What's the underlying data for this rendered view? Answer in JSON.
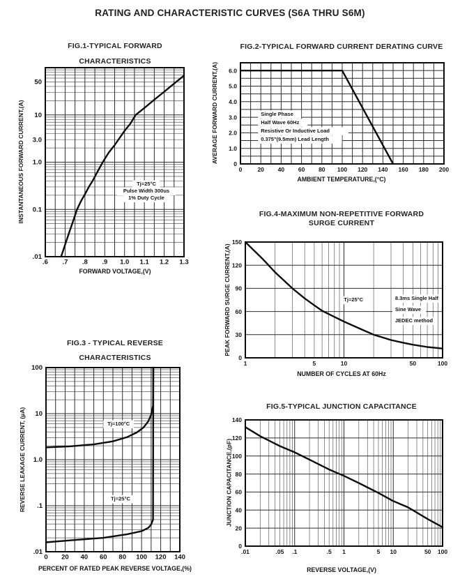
{
  "page": {
    "title": "RATING AND CHARACTERISTIC CURVES (S6A THRU S6M)"
  },
  "chart_data": [
    {
      "id": "fig1",
      "type": "line",
      "title": "FIG.1-TYPICAL FORWARD",
      "title2": "CHARACTERISTICS",
      "xlabel": "FORWARD VOLTAGE,(V)",
      "ylabel": "INSTANTANEOUS FORWARD CURRENT,(A)",
      "grid": true,
      "x": {
        "scale": "linear",
        "min": 0.6,
        "max": 1.3,
        "grid_step": 0.05,
        "ticks": [
          [
            0.6,
            ".6"
          ],
          [
            0.7,
            ".7"
          ],
          [
            0.8,
            ".8"
          ],
          [
            0.9,
            ".9"
          ],
          [
            1.0,
            "1.0"
          ],
          [
            1.1,
            "1.1"
          ],
          [
            1.2,
            "1.2"
          ],
          [
            1.3,
            "1.3"
          ]
        ]
      },
      "y": {
        "scale": "log",
        "min": 0.01,
        "max": 100,
        "ticks": [
          [
            0.01,
            ".01"
          ],
          [
            0.1,
            "0.1"
          ],
          [
            1,
            "1.0"
          ],
          [
            3,
            "3.0"
          ],
          [
            10,
            "10"
          ],
          [
            50,
            "50"
          ]
        ]
      },
      "series": [
        {
          "name": "forward-current-Tj25C",
          "points": [
            [
              0.68,
              0.01
            ],
            [
              0.7,
              0.018
            ],
            [
              0.72,
              0.032
            ],
            [
              0.74,
              0.056
            ],
            [
              0.76,
              0.1
            ],
            [
              0.78,
              0.15
            ],
            [
              0.8,
              0.21
            ],
            [
              0.82,
              0.3
            ],
            [
              0.84,
              0.41
            ],
            [
              0.86,
              0.59
            ],
            [
              0.89,
              1.0
            ],
            [
              0.92,
              1.6
            ],
            [
              0.95,
              2.3
            ],
            [
              1.0,
              4.6
            ],
            [
              1.03,
              6.6
            ],
            [
              1.056,
              10
            ],
            [
              1.1,
              14
            ],
            [
              1.15,
              21
            ],
            [
              1.2,
              31
            ],
            [
              1.25,
              46
            ],
            [
              1.3,
              68
            ]
          ]
        }
      ],
      "annotations": [
        {
          "x": 1.11,
          "y": 0.32,
          "align": "middle",
          "lh": 10,
          "lines": [
            "Tj=25°C",
            "Pulse Width 300us",
            "1% Duty Cycle"
          ]
        }
      ]
    },
    {
      "id": "fig2",
      "type": "line",
      "title": "FIG.2-TYPICAL FORWARD CURRENT DERATING CURVE",
      "title2": "",
      "xlabel": "AMBIENT TEMPERATURE,(°C)",
      "ylabel": "AVERAGE FORWARD CURRENT,(A)",
      "grid": true,
      "x": {
        "scale": "linear",
        "min": 0,
        "max": 200,
        "grid_step": 10,
        "ticks": [
          [
            0,
            "0"
          ],
          [
            20,
            "20"
          ],
          [
            40,
            "40"
          ],
          [
            60,
            "60"
          ],
          [
            80,
            "80"
          ],
          [
            100,
            "100"
          ],
          [
            120,
            "120"
          ],
          [
            140,
            "140"
          ],
          [
            160,
            "160"
          ],
          [
            180,
            "180"
          ],
          [
            200,
            "200"
          ]
        ]
      },
      "y": {
        "scale": "linear",
        "min": 0,
        "max": 6.5,
        "grid_step": 0.5,
        "ticks": [
          [
            0,
            "0"
          ],
          [
            1,
            "1.0"
          ],
          [
            2,
            "2.0"
          ],
          [
            3,
            "3.0"
          ],
          [
            4,
            "4.0"
          ],
          [
            5,
            "5.0"
          ],
          [
            6,
            "6.0"
          ]
        ]
      },
      "series": [
        {
          "name": "derating-curve",
          "points": [
            [
              0,
              6.0
            ],
            [
              100,
              6.0
            ],
            [
              150,
              0
            ]
          ]
        }
      ],
      "annotations": [
        {
          "x": 20,
          "y": 3.1,
          "align": "start",
          "lh": 12,
          "lines": [
            "Single Phase",
            "Half Wave 60Hz",
            "Resistive Or Inductive Load",
            "0.375\"(9.5mm) Lead Length"
          ]
        }
      ]
    },
    {
      "id": "fig3",
      "type": "line",
      "title": "FIG.3 - TYPICAL REVERSE",
      "title2": "CHARACTERISTICS",
      "xlabel": "PERCENT OF RATED PEAK REVERSE VOLTAGE,(%)",
      "ylabel": "REVERSE LEAKAGE CURRENT, (µA)",
      "grid": true,
      "x": {
        "scale": "linear",
        "min": 0,
        "max": 140,
        "grid_step": 10,
        "ticks": [
          [
            0,
            "0"
          ],
          [
            20,
            "20"
          ],
          [
            40,
            "40"
          ],
          [
            60,
            "60"
          ],
          [
            80,
            "80"
          ],
          [
            100,
            "100"
          ],
          [
            120,
            "120"
          ],
          [
            140,
            "140"
          ]
        ]
      },
      "y": {
        "scale": "log",
        "min": 0.01,
        "max": 100,
        "ticks": [
          [
            0.01,
            ".01"
          ],
          [
            0.1,
            ".1"
          ],
          [
            1,
            "1.0"
          ],
          [
            10,
            "10"
          ],
          [
            100,
            "100"
          ]
        ]
      },
      "series": [
        {
          "name": "leakage-Tj100C",
          "points": [
            [
              0,
              1.85
            ],
            [
              25,
              1.95
            ],
            [
              50,
              2.15
            ],
            [
              70,
              2.5
            ],
            [
              85,
              3.1
            ],
            [
              95,
              3.9
            ],
            [
              102,
              5.0
            ],
            [
              107,
              6.8
            ],
            [
              110,
              9.5
            ],
            [
              112,
              15
            ],
            [
              112.3,
              100
            ]
          ]
        },
        {
          "name": "leakage-Tj25C",
          "points": [
            [
              0,
              0.016
            ],
            [
              30,
              0.018
            ],
            [
              60,
              0.02
            ],
            [
              85,
              0.024
            ],
            [
              100,
              0.028
            ],
            [
              107,
              0.033
            ],
            [
              110,
              0.039
            ],
            [
              112,
              0.05
            ],
            [
              112.3,
              100
            ]
          ]
        }
      ],
      "annotations": [
        {
          "x": 76,
          "y": 5.5,
          "align": "middle",
          "lh": 10,
          "lines": [
            "Tj=100°C"
          ]
        },
        {
          "x": 78,
          "y": 0.13,
          "align": "middle",
          "lh": 10,
          "lines": [
            "Tj=25°C"
          ]
        }
      ]
    },
    {
      "id": "fig4",
      "type": "line",
      "title": "FIG.4-MAXIMUM NON-REPETITIVE FORWARD",
      "title2": "SURGE CURRENT",
      "xlabel": "NUMBER OF CYCLES AT 60Hz",
      "ylabel": "PEAK FORWARD SURGE CURRENT,(A)",
      "grid": true,
      "x": {
        "scale": "log",
        "min": 1,
        "max": 100,
        "ticks": [
          [
            1,
            "1"
          ],
          [
            5,
            "5"
          ],
          [
            10,
            "10"
          ],
          [
            50,
            "50"
          ],
          [
            100,
            "100"
          ]
        ]
      },
      "y": {
        "scale": "linear",
        "min": 0,
        "max": 150,
        "grid_step": 30,
        "ticks": [
          [
            0,
            "0"
          ],
          [
            30,
            "30"
          ],
          [
            60,
            "60"
          ],
          [
            90,
            "90"
          ],
          [
            120,
            "120"
          ],
          [
            150,
            "150"
          ]
        ]
      },
      "series": [
        {
          "name": "surge-current",
          "points": [
            [
              1,
              150
            ],
            [
              1.5,
              128
            ],
            [
              2,
              111
            ],
            [
              3,
              90
            ],
            [
              4,
              77
            ],
            [
              5,
              68
            ],
            [
              6,
              61
            ],
            [
              8,
              53
            ],
            [
              10,
              47
            ],
            [
              15,
              37
            ],
            [
              20,
              30
            ],
            [
              30,
              23
            ],
            [
              40,
              19.5
            ],
            [
              50,
              17
            ],
            [
              70,
              14
            ],
            [
              100,
              12
            ]
          ]
        }
      ],
      "annotations": [
        {
          "x": 12.5,
          "y": 73,
          "align": "middle",
          "lh": 16,
          "lines": [
            "Tj=25°C"
          ]
        },
        {
          "x": 33,
          "y": 75,
          "align": "start",
          "lh": 16,
          "lines": [
            "8.3ms Single Half",
            "Sine Wave",
            "JEDEC method"
          ]
        }
      ]
    },
    {
      "id": "fig5",
      "type": "line",
      "title": "FIG.5-TYPICAL JUNCTION CAPACITANCE",
      "title2": "",
      "xlabel": "REVERSE VOLTAGE,(V)",
      "ylabel": "JUNCTION CAPACITANCE,(pF)",
      "grid": true,
      "x": {
        "scale": "log",
        "min": 0.01,
        "max": 100,
        "ticks": [
          [
            0.01,
            ".01"
          ],
          [
            0.05,
            ".05"
          ],
          [
            0.1,
            ".1"
          ],
          [
            0.5,
            ".5"
          ],
          [
            1,
            "1"
          ],
          [
            5,
            "5"
          ],
          [
            10,
            "10"
          ],
          [
            50,
            "50"
          ],
          [
            100,
            "100"
          ]
        ]
      },
      "y": {
        "scale": "linear",
        "min": 0,
        "max": 140,
        "grid_step": 20,
        "ticks": [
          [
            0,
            "0"
          ],
          [
            20,
            "20"
          ],
          [
            40,
            "40"
          ],
          [
            60,
            "60"
          ],
          [
            80,
            "80"
          ],
          [
            100,
            "100"
          ],
          [
            120,
            "120"
          ],
          [
            140,
            "140"
          ]
        ]
      },
      "series": [
        {
          "name": "junction-capacitance",
          "points": [
            [
              0.01,
              132
            ],
            [
              0.02,
              122
            ],
            [
              0.05,
              111
            ],
            [
              0.1,
              104
            ],
            [
              0.2,
              96
            ],
            [
              0.5,
              85
            ],
            [
              1,
              78
            ],
            [
              2,
              70
            ],
            [
              5,
              59
            ],
            [
              10,
              50
            ],
            [
              20,
              43
            ],
            [
              50,
              30
            ],
            [
              100,
              21
            ]
          ]
        }
      ],
      "annotations": []
    }
  ]
}
